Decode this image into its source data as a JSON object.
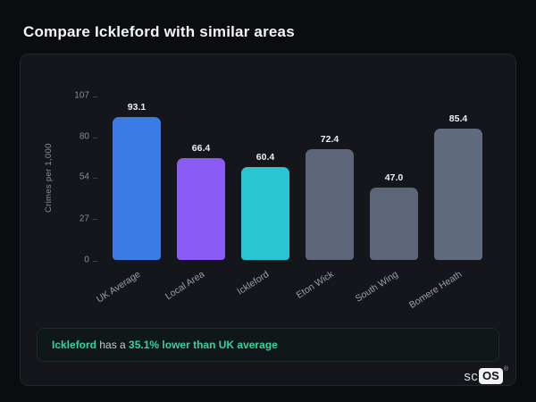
{
  "page": {
    "title": "Compare Ickleford with similar areas"
  },
  "chart_data": {
    "type": "bar",
    "title": "",
    "categories": [
      "UK Average",
      "Local Area",
      "Ickleford",
      "Eton Wick",
      "South Wing",
      "Bomere Heath"
    ],
    "values": [
      93.1,
      66.4,
      60.4,
      72.4,
      47.0,
      85.4
    ],
    "value_labels": [
      "93.1",
      "66.4",
      "60.4",
      "72.4",
      "47.0",
      "85.4"
    ],
    "bar_colors": [
      "#3a7ce4",
      "#8a5cf5",
      "#2bc5d2",
      "#5c6678",
      "#5c6678",
      "#606b7e"
    ],
    "xlabel": "",
    "ylabel": "Crimes per 1,000",
    "ylim": [
      0,
      107
    ],
    "yticks": [
      0,
      27,
      54,
      80,
      107
    ],
    "grid": false,
    "legend": false
  },
  "summary": {
    "area": "Ickleford",
    "mid": " has a ",
    "highlight": "35.1% lower than UK average"
  },
  "logo": {
    "prefix": "sc",
    "box": "OS",
    "reg": "®"
  },
  "colors": {
    "background": "#0b0c10",
    "card": "#15161c",
    "accent_teal": "#2dd4a6",
    "accent_green": "#34d399"
  }
}
